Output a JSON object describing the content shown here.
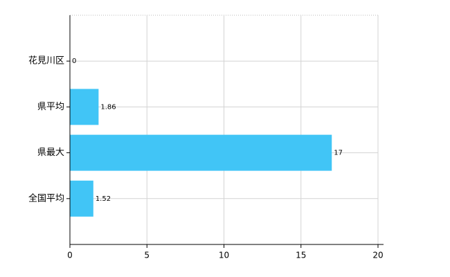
{
  "chart_data": {
    "type": "bar",
    "orientation": "horizontal",
    "categories": [
      "花見川区",
      "県平均",
      "県最大",
      "全国平均"
    ],
    "values": [
      0,
      1.86,
      17,
      1.52
    ],
    "color": "#41c5f6",
    "xlim": [
      0,
      20
    ],
    "xticks": [
      0,
      5,
      10,
      15,
      20
    ],
    "grid": true
  }
}
